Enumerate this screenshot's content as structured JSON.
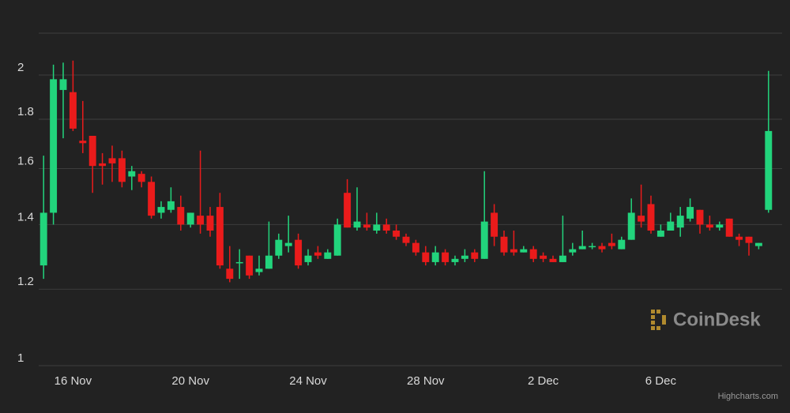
{
  "chart_data": {
    "type": "candlestick",
    "categories": [
      null,
      null,
      null,
      "16 Nov",
      null,
      null,
      null,
      null,
      null,
      null,
      null,
      null,
      null,
      null,
      null,
      "20 Nov",
      null,
      null,
      null,
      null,
      null,
      null,
      null,
      null,
      null,
      null,
      null,
      "24 Nov",
      null,
      null,
      null,
      null,
      null,
      null,
      null,
      null,
      null,
      null,
      null,
      "28 Nov",
      null,
      null,
      null,
      null,
      null,
      null,
      null,
      null,
      null,
      null,
      null,
      "2 Dec",
      null,
      null,
      null,
      null,
      null,
      null,
      null,
      null,
      null,
      null,
      null,
      "6 Dec",
      null,
      null,
      null,
      null,
      null,
      null,
      null,
      null,
      null,
      null,
      null
    ],
    "series": [
      {
        "up_color": "#22d47c",
        "down_color": "#ea1b1b",
        "open": [
          1.27,
          1.44,
          1.93,
          1.92,
          1.71,
          1.73,
          1.62,
          1.64,
          1.64,
          1.57,
          1.58,
          1.55,
          1.44,
          1.45,
          1.46,
          1.4,
          1.43,
          1.43,
          1.46,
          1.26,
          1.28,
          1.3,
          1.25,
          1.26,
          1.3,
          1.33,
          1.35,
          1.28,
          1.31,
          1.29,
          1.3,
          1.51,
          1.39,
          1.4,
          1.38,
          1.4,
          1.38,
          1.36,
          1.34,
          1.31,
          1.28,
          1.31,
          1.28,
          1.29,
          1.31,
          1.29,
          1.44,
          1.36,
          1.32,
          1.31,
          1.32,
          1.3,
          1.29,
          1.28,
          1.31,
          1.32,
          1.33,
          1.33,
          1.34,
          1.32,
          1.35,
          1.43,
          1.47,
          1.36,
          1.38,
          1.39,
          1.42,
          1.45,
          1.4,
          1.39,
          1.42,
          1.36,
          1.36,
          1.33,
          1.45
        ],
        "high": [
          1.65,
          2.05,
          2.06,
          2.07,
          1.88,
          1.73,
          1.66,
          1.69,
          1.67,
          1.61,
          1.59,
          1.57,
          1.48,
          1.53,
          1.5,
          1.44,
          1.67,
          1.46,
          1.51,
          1.33,
          1.32,
          1.3,
          1.3,
          1.41,
          1.37,
          1.43,
          1.37,
          1.32,
          1.33,
          1.32,
          1.42,
          1.56,
          1.53,
          1.44,
          1.44,
          1.42,
          1.4,
          1.37,
          1.35,
          1.33,
          1.33,
          1.32,
          1.3,
          1.32,
          1.32,
          1.59,
          1.47,
          1.38,
          1.38,
          1.33,
          1.33,
          1.31,
          1.3,
          1.43,
          1.34,
          1.38,
          1.34,
          1.34,
          1.37,
          1.36,
          1.49,
          1.54,
          1.5,
          1.4,
          1.44,
          1.46,
          1.49,
          1.45,
          1.43,
          1.41,
          1.42,
          1.37,
          1.36,
          1.34,
          2.02
        ],
        "low": [
          1.23,
          1.4,
          1.72,
          1.75,
          1.66,
          1.51,
          1.54,
          1.55,
          1.53,
          1.52,
          1.53,
          1.42,
          1.42,
          1.44,
          1.38,
          1.39,
          1.37,
          1.36,
          1.26,
          1.22,
          1.23,
          1.23,
          1.24,
          1.26,
          1.29,
          1.31,
          1.26,
          1.27,
          1.29,
          1.29,
          1.3,
          1.39,
          1.38,
          1.38,
          1.37,
          1.37,
          1.35,
          1.33,
          1.3,
          1.27,
          1.27,
          1.27,
          1.27,
          1.28,
          1.28,
          1.29,
          1.33,
          1.3,
          1.3,
          1.31,
          1.28,
          1.28,
          1.28,
          1.28,
          1.3,
          1.32,
          1.32,
          1.31,
          1.32,
          1.32,
          1.35,
          1.39,
          1.37,
          1.36,
          1.38,
          1.36,
          1.41,
          1.37,
          1.38,
          1.38,
          1.36,
          1.33,
          1.3,
          1.32,
          1.44
        ],
        "close": [
          1.44,
          1.98,
          1.98,
          1.76,
          1.7,
          1.61,
          1.61,
          1.62,
          1.55,
          1.59,
          1.55,
          1.43,
          1.46,
          1.48,
          1.4,
          1.44,
          1.4,
          1.38,
          1.27,
          1.23,
          1.28,
          1.24,
          1.26,
          1.3,
          1.35,
          1.34,
          1.27,
          1.3,
          1.3,
          1.31,
          1.4,
          1.39,
          1.41,
          1.39,
          1.4,
          1.38,
          1.36,
          1.34,
          1.31,
          1.28,
          1.31,
          1.28,
          1.29,
          1.3,
          1.29,
          1.41,
          1.36,
          1.31,
          1.31,
          1.32,
          1.29,
          1.29,
          1.28,
          1.3,
          1.32,
          1.33,
          1.33,
          1.32,
          1.33,
          1.35,
          1.44,
          1.41,
          1.38,
          1.38,
          1.41,
          1.43,
          1.46,
          1.4,
          1.39,
          1.4,
          1.36,
          1.35,
          1.34,
          1.34,
          1.75
        ]
      }
    ],
    "ylim": [
      1,
      2.21
    ],
    "yticks": [
      1,
      1.2,
      1.4,
      1.6,
      1.8,
      2
    ],
    "log_scale": true,
    "grid": true,
    "watermark": "CoinDesk",
    "credits": "Highcharts.com"
  }
}
